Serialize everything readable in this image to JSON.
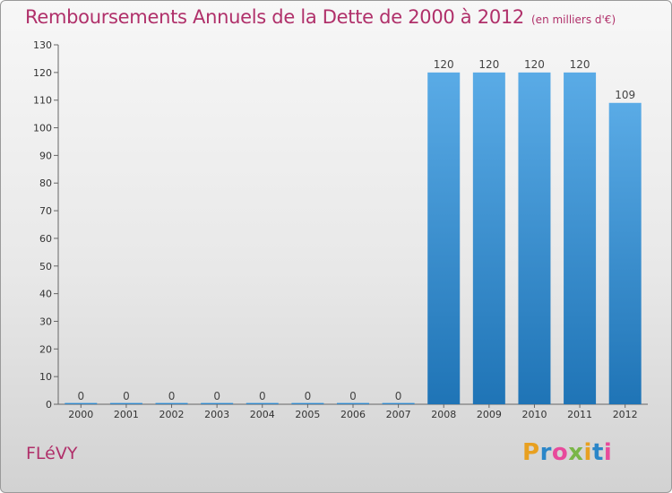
{
  "title": "Remboursements Annuels de la Dette de 2000 à 2012",
  "subtitle": "(en milliers d'€)",
  "commune": "FLéVY",
  "logo": {
    "letters": [
      "P",
      "r",
      "o",
      "x",
      "i",
      "t",
      "i"
    ],
    "colors": [
      "#e8a020",
      "#2b86c8",
      "#e84a9b",
      "#7ab648",
      "#e8a020",
      "#2b86c8",
      "#e84a9b"
    ]
  },
  "colors": {
    "bar_light": "#5aabe6",
    "bar_dark": "#1f74b6",
    "title": "#b0306a"
  },
  "chart_data": {
    "type": "bar",
    "categories": [
      "2000",
      "2001",
      "2002",
      "2003",
      "2004",
      "2005",
      "2006",
      "2007",
      "2008",
      "2009",
      "2010",
      "2011",
      "2012"
    ],
    "values": [
      0,
      0,
      0,
      0,
      0,
      0,
      0,
      0,
      120,
      120,
      120,
      120,
      109
    ],
    "data_labels": [
      "0",
      "0",
      "0",
      "0",
      "0",
      "0",
      "0",
      "0",
      "120",
      "120",
      "120",
      "120",
      "109"
    ],
    "ylim": [
      0,
      130
    ],
    "yticks": [
      0,
      10,
      20,
      30,
      40,
      50,
      60,
      70,
      80,
      90,
      100,
      110,
      120,
      130
    ],
    "grid": false,
    "legend": "none"
  }
}
